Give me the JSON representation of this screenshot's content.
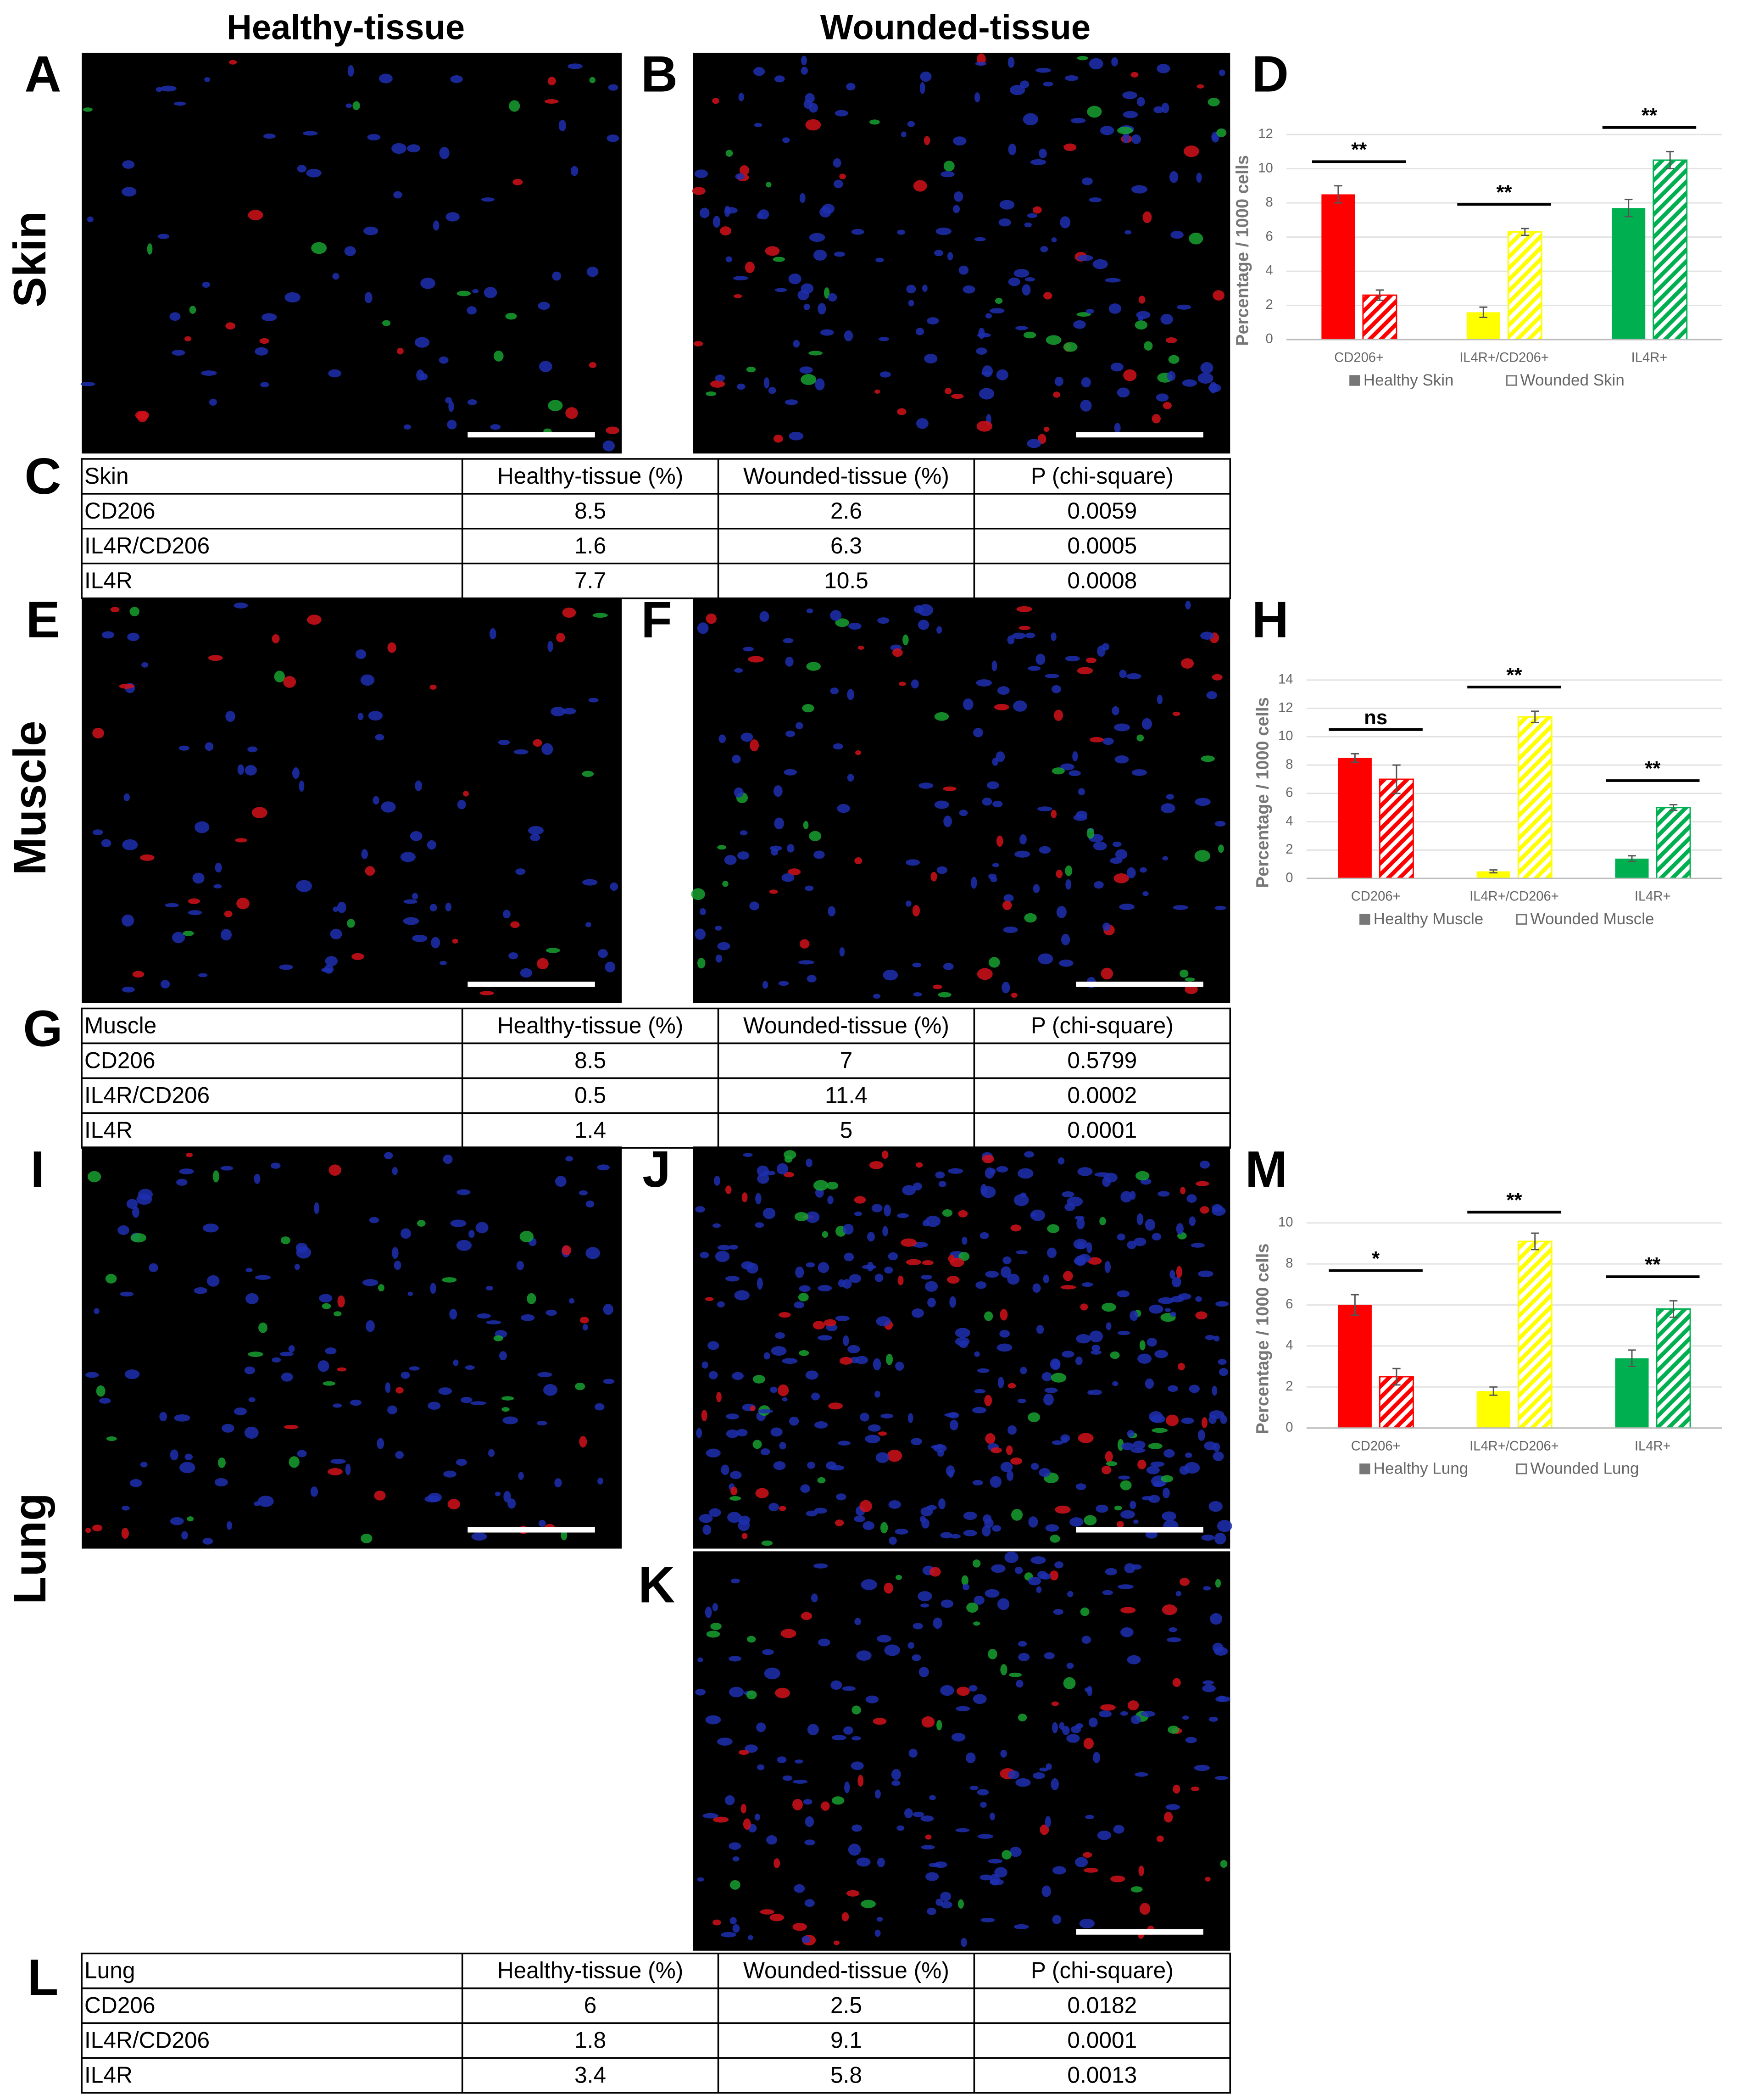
{
  "column_headers": [
    "Healthy-tissue",
    "Wounded-tissue"
  ],
  "row_labels": [
    "Skin",
    "Muscle",
    "Lung"
  ],
  "panel_letters": [
    "A",
    "B",
    "C",
    "D",
    "E",
    "F",
    "G",
    "H",
    "I",
    "J",
    "K",
    "L",
    "M"
  ],
  "chart_data": [
    {
      "type": "bar",
      "y_label": "Percentage / 1000 cells",
      "categories": [
        "CD206+",
        "IL4R+/CD206+",
        "IL4R+"
      ],
      "series": [
        {
          "name": "Healthy Skin",
          "color": "#ff0000",
          "values": [
            8.5,
            1.6,
            7.7
          ],
          "errors": [
            0.5,
            0.3,
            0.5
          ]
        },
        {
          "name": "Wounded Skin",
          "color": "#ff0000",
          "hatch": true,
          "values": [
            2.6,
            6.3,
            10.5
          ],
          "errors": [
            0.3,
            0.2,
            0.5
          ]
        }
      ],
      "series_colors_by_category": [
        "#ff0000",
        "#ffff00",
        "#00b050"
      ],
      "significance": [
        "**",
        "**",
        "**"
      ],
      "ylim": [
        0,
        12
      ],
      "yticks": [
        0,
        2,
        4,
        6,
        8,
        10,
        12
      ],
      "grid": true
    },
    {
      "type": "bar",
      "y_label": "Percentage / 1000 cells",
      "categories": [
        "CD206+",
        "IL4R+/CD206+",
        "IL4R+"
      ],
      "series": [
        {
          "name": "Healthy Muscle",
          "color": "#ff0000",
          "values": [
            8.5,
            0.5,
            1.4
          ],
          "errors": [
            0.3,
            0.1,
            0.2
          ]
        },
        {
          "name": "Wounded Muscle",
          "color": "#ff0000",
          "hatch": true,
          "values": [
            7,
            11.4,
            5
          ],
          "errors": [
            1.0,
            0.4,
            0.2
          ]
        }
      ],
      "series_colors_by_category": [
        "#ff0000",
        "#ffff00",
        "#00b050"
      ],
      "significance": [
        "ns",
        "**",
        "**"
      ],
      "ylim": [
        0,
        14
      ],
      "yticks": [
        0,
        2,
        4,
        6,
        8,
        10,
        12,
        14
      ],
      "grid": true
    },
    {
      "type": "bar",
      "y_label": "Percentage / 1000 cells",
      "categories": [
        "CD206+",
        "IL4R+/CD206+",
        "IL4R+"
      ],
      "series": [
        {
          "name": "Healthy Lung",
          "color": "#ff0000",
          "values": [
            6,
            1.8,
            3.4
          ],
          "errors": [
            0.5,
            0.2,
            0.4
          ]
        },
        {
          "name": "Wounded Lung",
          "color": "#ff0000",
          "hatch": true,
          "values": [
            2.5,
            9.1,
            5.8
          ],
          "errors": [
            0.4,
            0.4,
            0.4
          ]
        }
      ],
      "series_colors_by_category": [
        "#ff0000",
        "#ffff00",
        "#00b050"
      ],
      "significance": [
        "*",
        "**",
        "**"
      ],
      "ylim": [
        0,
        10
      ],
      "yticks": [
        0,
        2,
        4,
        6,
        8,
        10
      ],
      "grid": true
    }
  ],
  "tables": [
    {
      "header": [
        "Skin",
        "Healthy-tissue (%)",
        "Wounded-tissue (%)",
        "P (chi-square)"
      ],
      "rows": [
        [
          "CD206",
          8.5,
          2.6,
          0.0059
        ],
        [
          "IL4R/CD206",
          1.6,
          6.3,
          0.0005
        ],
        [
          "IL4R",
          7.7,
          10.5,
          0.0008
        ]
      ]
    },
    {
      "header": [
        "Muscle",
        "Healthy-tissue (%)",
        "Wounded-tissue (%)",
        "P (chi-square)"
      ],
      "rows": [
        [
          "CD206",
          8.5,
          7,
          0.5799
        ],
        [
          "IL4R/CD206",
          0.5,
          11.4,
          0.0002
        ],
        [
          "IL4R",
          1.4,
          5,
          0.0001
        ]
      ]
    },
    {
      "header": [
        "Lung",
        "Healthy-tissue (%)",
        "Wounded-tissue (%)",
        "P (chi-square)"
      ],
      "rows": [
        [
          "CD206",
          6,
          2.5,
          0.0182
        ],
        [
          "IL4R/CD206",
          1.8,
          9.1,
          0.0001
        ],
        [
          "IL4R",
          3.4,
          5.8,
          0.0013
        ]
      ]
    }
  ]
}
